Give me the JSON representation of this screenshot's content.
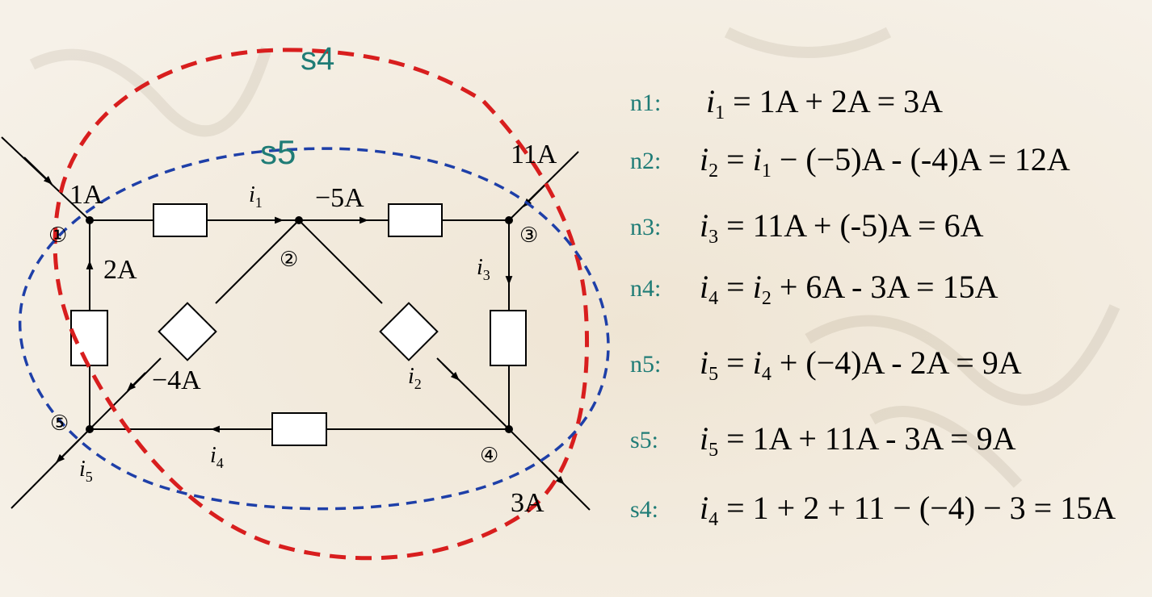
{
  "diagram": {
    "loops": [
      {
        "label": "s4",
        "color": "#d81e1e"
      },
      {
        "label": "s5",
        "color": "#1e3fa8"
      }
    ],
    "nodes": [
      "①",
      "②",
      "③",
      "④",
      "⑤"
    ],
    "currents": {
      "in_1": "1A",
      "in_3": "11A",
      "out_4": "3A",
      "branch_1_5": "2A",
      "branch_2_3": "−5A",
      "branch_2_5": "−4A"
    },
    "current_names": {
      "i1": "i",
      "i1_sub": "1",
      "i2": "i",
      "i2_sub": "2",
      "i3": "i",
      "i3_sub": "3",
      "i4": "i",
      "i4_sub": "4",
      "i5": "i",
      "i5_sub": "5"
    }
  },
  "equations": [
    {
      "label": "n1:",
      "lhs": "i",
      "sub": "1",
      "rhs": " = 1A + 2A = 3A"
    },
    {
      "label": "n2:",
      "lhs": "i",
      "sub": "2",
      "rhs_parts": [
        " = ",
        "i",
        "1",
        " − (−5)A - (-4)A = 12A"
      ]
    },
    {
      "label": "n3:",
      "lhs": "i",
      "sub": "3",
      "rhs": " = 11A + (-5)A = 6A"
    },
    {
      "label": "n4:",
      "lhs": "i",
      "sub": "4",
      "rhs_parts": [
        " = ",
        "i",
        "2",
        " + 6A - 3A = 15A"
      ]
    },
    {
      "label": "n5:",
      "lhs": "i",
      "sub": "5",
      "rhs_parts": [
        " = ",
        "i",
        "4",
        " + (−4)A - 2A = 9A"
      ]
    },
    {
      "label": "s5:",
      "lhs": "i",
      "sub": "5",
      "rhs": " = 1A + 11A - 3A = 9A"
    },
    {
      "label": "s4:",
      "lhs": "i",
      "sub": "4",
      "rhs": " = 1 + 2 + 11 − (−4) − 3 = 15A"
    }
  ]
}
